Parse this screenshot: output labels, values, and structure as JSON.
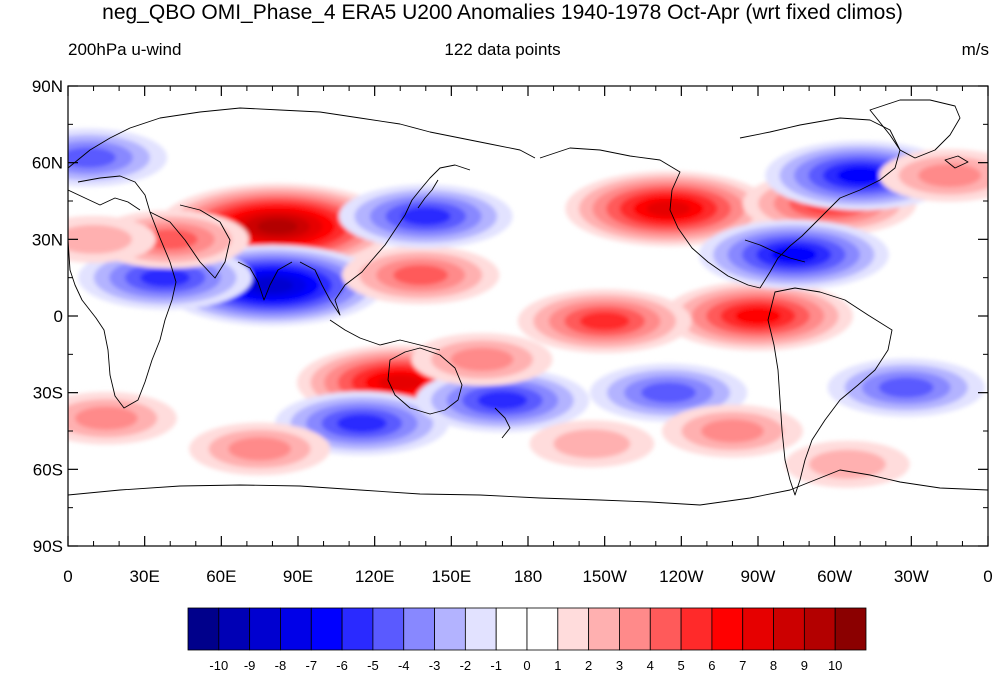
{
  "title": "neg_QBO OMI_Phase_4 ERA5 U200 Anomalies 1940-1978 Oct-Apr (wrt fixed climos)",
  "subtitle_left": "200hPa u-wind",
  "subtitle_center": "122 data points",
  "subtitle_right": "m/s",
  "lat_ticks": [
    {
      "value": 90,
      "label": "90N"
    },
    {
      "value": 60,
      "label": "60N"
    },
    {
      "value": 30,
      "label": "30N"
    },
    {
      "value": 0,
      "label": "0"
    },
    {
      "value": -30,
      "label": "30S"
    },
    {
      "value": -60,
      "label": "60S"
    },
    {
      "value": -90,
      "label": "90S"
    }
  ],
  "lon_ticks": [
    {
      "value": 0,
      "label": "0"
    },
    {
      "value": 30,
      "label": "30E"
    },
    {
      "value": 60,
      "label": "60E"
    },
    {
      "value": 90,
      "label": "90E"
    },
    {
      "value": 120,
      "label": "120E"
    },
    {
      "value": 150,
      "label": "150E"
    },
    {
      "value": 180,
      "label": "180"
    },
    {
      "value": 210,
      "label": "150W"
    },
    {
      "value": 240,
      "label": "120W"
    },
    {
      "value": 270,
      "label": "90W"
    },
    {
      "value": 300,
      "label": "60W"
    },
    {
      "value": 330,
      "label": "30W"
    },
    {
      "value": 360,
      "label": "0"
    }
  ],
  "colorbar": {
    "colors": [
      "#00008b",
      "#0000b5",
      "#0000d0",
      "#0000e8",
      "#0000ff",
      "#2a2aff",
      "#5a5aff",
      "#8888ff",
      "#b3b3ff",
      "#e2e2ff",
      "#ffffff",
      "#ffffff",
      "#ffdcdc",
      "#ffb0b0",
      "#ff8a8a",
      "#ff5a5a",
      "#ff2a2a",
      "#ff0000",
      "#e60000",
      "#cc0000",
      "#b30000",
      "#8b0000"
    ],
    "labels": [
      "-10",
      "-9",
      "-8",
      "-7",
      "-6",
      "-5",
      "-4",
      "-3",
      "-2",
      "-1",
      "0",
      "1",
      "2",
      "3",
      "4",
      "5",
      "6",
      "7",
      "8",
      "9",
      "10"
    ]
  },
  "chart_data": {
    "type": "heatmap",
    "variable": "200hPa u-wind",
    "units": "m/s",
    "lon_range": [
      0,
      360
    ],
    "lat_range": [
      -90,
      90
    ],
    "levels": [
      -10,
      -9,
      -8,
      -7,
      -6,
      -5,
      -4,
      -3,
      -2,
      -1,
      0,
      1,
      2,
      3,
      4,
      5,
      6,
      7,
      8,
      9,
      10
    ],
    "anomaly_centers": [
      {
        "lon": 82,
        "lat": 35,
        "value": 9
      },
      {
        "lon": 80,
        "lat": 12,
        "value": -8
      },
      {
        "lon": 38,
        "lat": 15,
        "value": -5
      },
      {
        "lon": 130,
        "lat": -26,
        "value": 7
      },
      {
        "lon": 235,
        "lat": 42,
        "value": 7
      },
      {
        "lon": 298,
        "lat": 44,
        "value": 5
      },
      {
        "lon": 270,
        "lat": 0,
        "value": 6
      },
      {
        "lon": 210,
        "lat": -2,
        "value": 5
      },
      {
        "lon": 138,
        "lat": 16,
        "value": 4
      },
      {
        "lon": 284,
        "lat": 24,
        "value": -6
      },
      {
        "lon": 310,
        "lat": 55,
        "value": -6
      },
      {
        "lon": 140,
        "lat": 39,
        "value": -5
      },
      {
        "lon": 115,
        "lat": -42,
        "value": -5
      },
      {
        "lon": 170,
        "lat": -33,
        "value": -5
      },
      {
        "lon": 235,
        "lat": -30,
        "value": -4
      },
      {
        "lon": 328,
        "lat": -28,
        "value": -4
      },
      {
        "lon": 8,
        "lat": 62,
        "value": -4
      },
      {
        "lon": 75,
        "lat": -52,
        "value": 3
      },
      {
        "lon": 260,
        "lat": -45,
        "value": 3
      },
      {
        "lon": 305,
        "lat": -58,
        "value": 2
      },
      {
        "lon": 205,
        "lat": -50,
        "value": 2
      },
      {
        "lon": 162,
        "lat": -17,
        "value": 3
      },
      {
        "lon": 345,
        "lat": 55,
        "value": 3
      },
      {
        "lon": 40,
        "lat": 30,
        "value": 4
      },
      {
        "lon": 10,
        "lat": 30,
        "value": 2
      },
      {
        "lon": 15,
        "lat": -40,
        "value": 3
      }
    ]
  }
}
